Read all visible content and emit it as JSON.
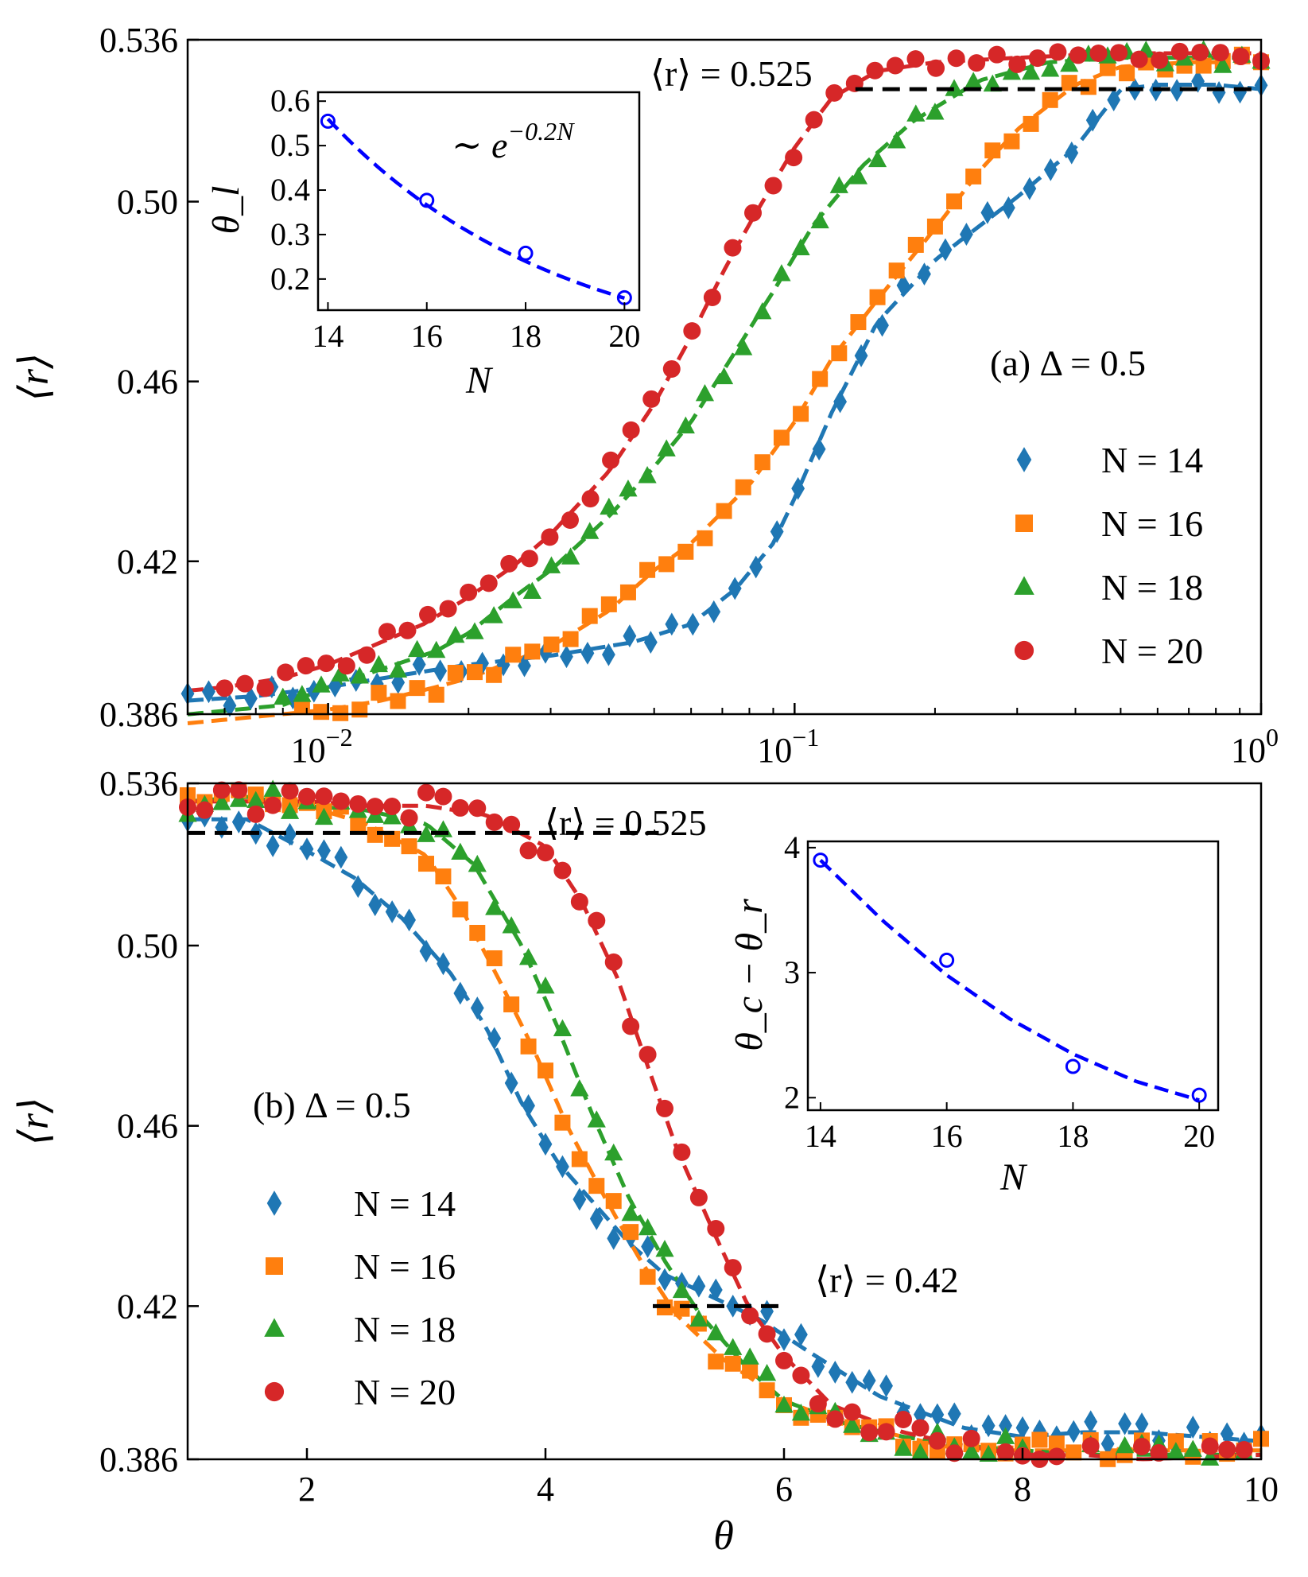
{
  "chart_data": [
    {
      "type": "line",
      "panel": "a",
      "x_scale": "log",
      "xlim": [
        0.005,
        1.0
      ],
      "ylim": [
        0.386,
        0.536
      ],
      "ylabel": "⟨r⟩",
      "xlabel": "",
      "y_ticks": [
        "0.386",
        "0.42",
        "0.46",
        "0.50",
        "0.536"
      ],
      "x_tick_bases": [
        "10",
        "10",
        "10"
      ],
      "x_tick_exps": [
        "−2",
        "−1",
        "0"
      ],
      "panel_label": "(a) Δ = 0.5",
      "ref_line": {
        "label": "⟨r⟩ = 0.525",
        "value": 0.525,
        "x_range": [
          0.135,
          1.0
        ]
      },
      "legend_position": "right",
      "series": [
        {
          "name": "N = 14",
          "color": "#1f77b4",
          "marker": "diamond",
          "x": [
            0.005,
            0.007,
            0.01,
            0.015,
            0.02,
            0.03,
            0.045,
            0.06,
            0.075,
            0.09,
            0.1,
            0.12,
            0.15,
            0.2,
            0.3,
            0.4,
            0.5,
            0.6,
            0.8,
            1.0
          ],
          "y": [
            0.389,
            0.39,
            0.392,
            0.395,
            0.397,
            0.399,
            0.402,
            0.406,
            0.414,
            0.424,
            0.434,
            0.453,
            0.473,
            0.487,
            0.501,
            0.512,
            0.525,
            0.526,
            0.526,
            0.525
          ]
        },
        {
          "name": "N = 16",
          "color": "#ff7f0e",
          "marker": "square",
          "x": [
            0.008,
            0.01,
            0.013,
            0.017,
            0.02,
            0.03,
            0.04,
            0.05,
            0.06,
            0.08,
            0.1,
            0.12,
            0.15,
            0.2,
            0.25,
            0.3,
            0.4,
            0.5,
            0.7,
            1.0
          ],
          "y": [
            0.386,
            0.387,
            0.389,
            0.392,
            0.394,
            0.401,
            0.409,
            0.418,
            0.424,
            0.437,
            0.451,
            0.465,
            0.478,
            0.494,
            0.507,
            0.516,
            0.526,
            0.53,
            0.531,
            0.531
          ]
        },
        {
          "name": "N = 18",
          "color": "#2ca02c",
          "marker": "triangle",
          "x": [
            0.008,
            0.01,
            0.013,
            0.017,
            0.02,
            0.025,
            0.03,
            0.04,
            0.05,
            0.06,
            0.075,
            0.09,
            0.11,
            0.14,
            0.18,
            0.25,
            0.35,
            0.5,
            0.7,
            1.0
          ],
          "y": [
            0.388,
            0.392,
            0.396,
            0.4,
            0.404,
            0.412,
            0.418,
            0.43,
            0.441,
            0.451,
            0.467,
            0.48,
            0.495,
            0.508,
            0.518,
            0.527,
            0.531,
            0.532,
            0.532,
            0.532
          ]
        },
        {
          "name": "N = 20",
          "color": "#d62728",
          "marker": "circle",
          "x": [
            0.006,
            0.008,
            0.01,
            0.013,
            0.016,
            0.02,
            0.025,
            0.03,
            0.04,
            0.05,
            0.06,
            0.07,
            0.08,
            0.1,
            0.12,
            0.15,
            0.2,
            0.3,
            0.5,
            1.0
          ],
          "y": [
            0.392,
            0.394,
            0.397,
            0.402,
            0.406,
            0.412,
            0.419,
            0.426,
            0.44,
            0.455,
            0.47,
            0.484,
            0.495,
            0.512,
            0.523,
            0.529,
            0.531,
            0.532,
            0.533,
            0.533
          ]
        }
      ]
    },
    {
      "type": "line",
      "panel": "b",
      "xlim": [
        1,
        10
      ],
      "ylim": [
        0.386,
        0.536
      ],
      "xlabel": "θ",
      "ylabel": "⟨r⟩",
      "x_ticks": [
        "2",
        "4",
        "6",
        "8",
        "10"
      ],
      "y_ticks": [
        "0.386",
        "0.42",
        "0.46",
        "0.50",
        "0.536"
      ],
      "panel_label": "(b)  Δ = 0.5",
      "ref_lines": [
        {
          "label": "⟨r⟩ = 0.525",
          "value": 0.525,
          "x_range": [
            1,
            4.95
          ]
        },
        {
          "label": "⟨r⟩ = 0.42",
          "value": 0.42,
          "x_range": [
            4.9,
            6.0
          ]
        }
      ],
      "legend_position": "lower-left",
      "series": [
        {
          "name": "N = 14",
          "color": "#1f77b4",
          "marker": "diamond",
          "x": [
            1,
            1.5,
            2,
            2.4,
            2.8,
            3.2,
            3.5,
            3.8,
            4.1,
            4.4,
            4.7,
            5.0,
            5.4,
            5.8,
            6.2,
            6.8,
            7.5,
            8.0,
            8.5,
            9.0,
            10.0
          ],
          "y": [
            0.528,
            0.528,
            0.521,
            0.515,
            0.506,
            0.494,
            0.482,
            0.465,
            0.452,
            0.443,
            0.434,
            0.427,
            0.422,
            0.417,
            0.41,
            0.4,
            0.393,
            0.391,
            0.392,
            0.392,
            0.39
          ]
        },
        {
          "name": "N = 16",
          "color": "#ff7f0e",
          "marker": "square",
          "x": [
            1,
            1.5,
            2,
            2.5,
            3.0,
            3.3,
            3.6,
            3.9,
            4.2,
            4.5,
            4.8,
            5.1,
            5.5,
            6.0,
            6.5,
            7.0,
            7.5,
            8.0,
            8.5,
            9.0,
            10.0
          ],
          "y": [
            0.532,
            0.532,
            0.531,
            0.527,
            0.52,
            0.508,
            0.493,
            0.477,
            0.459,
            0.444,
            0.43,
            0.418,
            0.408,
            0.399,
            0.394,
            0.391,
            0.388,
            0.388,
            0.388,
            0.388,
            0.388
          ]
        },
        {
          "name": "N = 18",
          "color": "#2ca02c",
          "marker": "triangle",
          "x": [
            1,
            1.5,
            2,
            2.5,
            3.0,
            3.4,
            3.8,
            4.1,
            4.4,
            4.7,
            5.0,
            5.3,
            5.7,
            6.0,
            6.5,
            7.0,
            7.5,
            8.0,
            8.5,
            9.0,
            10.0
          ],
          "y": [
            0.532,
            0.533,
            0.531,
            0.53,
            0.527,
            0.518,
            0.5,
            0.482,
            0.462,
            0.444,
            0.43,
            0.418,
            0.406,
            0.399,
            0.394,
            0.391,
            0.389,
            0.388,
            0.387,
            0.387,
            0.387
          ]
        },
        {
          "name": "N = 20",
          "color": "#d62728",
          "marker": "circle",
          "x": [
            1,
            1.5,
            2,
            2.5,
            3.0,
            3.5,
            4.0,
            4.3,
            4.6,
            4.9,
            5.1,
            5.4,
            5.7,
            6.0,
            6.4,
            7.0,
            7.5,
            8.0,
            8.5,
            9.0,
            10.0
          ],
          "y": [
            0.532,
            0.532,
            0.532,
            0.531,
            0.531,
            0.529,
            0.522,
            0.51,
            0.493,
            0.47,
            0.455,
            0.437,
            0.42,
            0.409,
            0.398,
            0.392,
            0.389,
            0.387,
            0.387,
            0.386,
            0.387
          ]
        }
      ]
    },
    {
      "type": "line",
      "panel": "a-inset",
      "xlabel": "N",
      "ylabel": "θ_l",
      "xlim": [
        13.8,
        20.3
      ],
      "ylim": [
        0.13,
        0.62
      ],
      "x_ticks": [
        "14",
        "16",
        "18",
        "20"
      ],
      "y_ticks": [
        "0.2",
        "0.3",
        "0.4",
        "0.5",
        "0.6"
      ],
      "annotation": "∼ e^{−0.2N}",
      "annotation_base": "∼ e",
      "annotation_exp": "−0.2N",
      "color": "#0000ff",
      "points": {
        "x": [
          14,
          16,
          18,
          20
        ],
        "y": [
          0.555,
          0.377,
          0.258,
          0.158
        ]
      },
      "fit": {
        "form": "exp",
        "x": [
          14,
          20
        ],
        "y": [
          0.56,
          0.157
        ]
      }
    },
    {
      "type": "line",
      "panel": "b-inset",
      "xlabel": "N",
      "ylabel": "θ_c − θ_r",
      "xlim": [
        13.8,
        20.3
      ],
      "ylim": [
        1.9,
        4.05
      ],
      "x_ticks": [
        "14",
        "16",
        "18",
        "20"
      ],
      "y_ticks": [
        "2",
        "3",
        "4"
      ],
      "color": "#0000ff",
      "points": {
        "x": [
          14,
          16,
          18,
          20
        ],
        "y": [
          3.9,
          3.1,
          2.25,
          2.02
        ]
      },
      "fit": {
        "form": "quadratic",
        "x": [
          14,
          15,
          16,
          17,
          18,
          19,
          20
        ],
        "y": [
          3.9,
          3.41,
          2.98,
          2.63,
          2.35,
          2.13,
          1.98
        ]
      }
    }
  ]
}
